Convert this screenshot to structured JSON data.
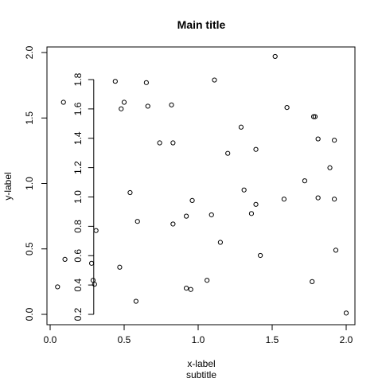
{
  "chart_data": {
    "type": "scatter",
    "title": "Main title",
    "subtitle": "subtitle",
    "xlabel": "x-label",
    "ylabel": "y-label",
    "xlim": [
      0,
      2
    ],
    "ylim": [
      0,
      2
    ],
    "x_ticks": [
      "0.0",
      "0.5",
      "1.0",
      "1.5",
      "2.0"
    ],
    "y_ticks": [
      "0.0",
      "0.5",
      "1.0",
      "1.5",
      "2.0"
    ],
    "inner_axis": {
      "ticks": [
        "0.2",
        "0.4",
        "0.6",
        "0.8",
        "1.0",
        "1.2",
        "1.4",
        "1.6",
        "1.8"
      ],
      "x_position": 0.3,
      "range": [
        0.2,
        1.8
      ]
    },
    "points": [
      {
        "x": 0.09,
        "y": 1.62
      },
      {
        "x": 0.44,
        "y": 1.78
      },
      {
        "x": 0.65,
        "y": 1.77
      },
      {
        "x": 1.11,
        "y": 1.79
      },
      {
        "x": 1.52,
        "y": 1.97
      },
      {
        "x": 0.5,
        "y": 1.62
      },
      {
        "x": 0.48,
        "y": 1.57
      },
      {
        "x": 0.66,
        "y": 1.59
      },
      {
        "x": 0.82,
        "y": 1.6
      },
      {
        "x": 1.6,
        "y": 1.58
      },
      {
        "x": 1.78,
        "y": 1.51
      },
      {
        "x": 1.79,
        "y": 1.51
      },
      {
        "x": 1.29,
        "y": 1.43
      },
      {
        "x": 0.74,
        "y": 1.31
      },
      {
        "x": 0.83,
        "y": 1.31
      },
      {
        "x": 1.81,
        "y": 1.34
      },
      {
        "x": 1.92,
        "y": 1.33
      },
      {
        "x": 1.39,
        "y": 1.26
      },
      {
        "x": 1.2,
        "y": 1.23
      },
      {
        "x": 1.89,
        "y": 1.12
      },
      {
        "x": 1.72,
        "y": 1.02
      },
      {
        "x": 1.31,
        "y": 0.95
      },
      {
        "x": 0.54,
        "y": 0.93
      },
      {
        "x": 0.96,
        "y": 0.87
      },
      {
        "x": 1.58,
        "y": 0.88
      },
      {
        "x": 1.81,
        "y": 0.89
      },
      {
        "x": 1.92,
        "y": 0.88
      },
      {
        "x": 1.39,
        "y": 0.84
      },
      {
        "x": 1.09,
        "y": 0.76
      },
      {
        "x": 0.92,
        "y": 0.75
      },
      {
        "x": 1.36,
        "y": 0.77
      },
      {
        "x": 0.59,
        "y": 0.71
      },
      {
        "x": 0.83,
        "y": 0.69
      },
      {
        "x": 0.31,
        "y": 0.64
      },
      {
        "x": 1.15,
        "y": 0.55
      },
      {
        "x": 1.93,
        "y": 0.49
      },
      {
        "x": 0.1,
        "y": 0.42
      },
      {
        "x": 1.42,
        "y": 0.45
      },
      {
        "x": 0.28,
        "y": 0.39
      },
      {
        "x": 0.47,
        "y": 0.36
      },
      {
        "x": 0.29,
        "y": 0.26
      },
      {
        "x": 0.3,
        "y": 0.23
      },
      {
        "x": 0.05,
        "y": 0.21
      },
      {
        "x": 1.06,
        "y": 0.26
      },
      {
        "x": 1.77,
        "y": 0.25
      },
      {
        "x": 0.92,
        "y": 0.2
      },
      {
        "x": 0.95,
        "y": 0.19
      },
      {
        "x": 0.58,
        "y": 0.1
      },
      {
        "x": 2.0,
        "y": 0.01
      }
    ]
  }
}
